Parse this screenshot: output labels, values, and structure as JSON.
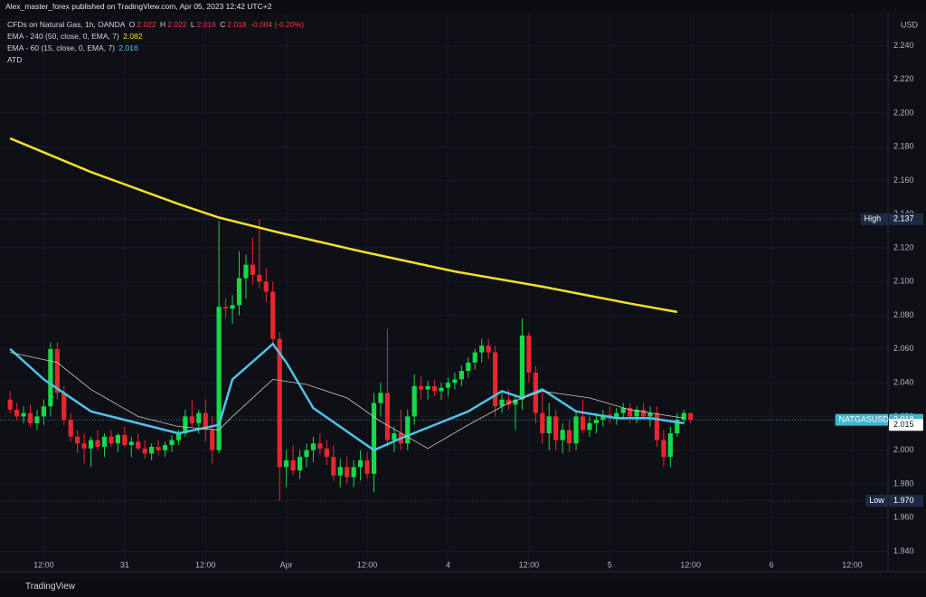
{
  "header": "Alex_master_forex published on TradingView.com, Apr 05, 2023 12:42 UTC+2",
  "footer": "TradingView",
  "chart_data": {
    "type": "candlestick",
    "title": "CFDs on Natural Gas, 1h, OANDA",
    "ohlc_labels": [
      "O",
      "H",
      "L",
      "C"
    ],
    "change": "-0.004 (-0.20%)",
    "currency": "USD",
    "indicator_label": "ATD",
    "up_color": "#16d94a",
    "down_color": "#e8262f",
    "x": [
      0,
      1,
      2,
      3,
      4,
      5,
      6,
      7,
      8,
      9,
      10,
      11,
      12,
      13,
      14,
      15,
      16,
      17,
      18,
      19,
      20,
      21,
      22,
      23,
      24,
      25,
      26,
      27,
      28,
      29,
      30,
      31,
      32,
      33,
      34,
      35,
      36,
      37,
      38,
      39,
      40,
      41,
      42,
      43,
      44,
      45,
      46,
      47,
      48,
      49,
      50,
      51,
      52,
      53,
      54,
      55,
      56,
      57,
      58,
      59,
      60,
      61,
      62,
      63,
      64,
      65,
      66,
      67,
      68,
      69,
      70,
      71,
      72,
      73,
      74,
      75,
      76,
      77,
      78,
      79,
      80,
      81,
      82,
      83,
      84,
      85,
      86,
      87,
      88,
      89,
      90,
      91,
      92,
      93,
      94,
      95,
      96,
      97,
      98,
      99,
      100,
      101
    ],
    "open": [
      2.03,
      2.024,
      2.02,
      2.022,
      2.016,
      2.02,
      2.026,
      2.06,
      2.034,
      2.018,
      2.008,
      2.004,
      2.001,
      2.006,
      2.002,
      2.008,
      2.004,
      2.009,
      2.003,
      2.005,
      2.001,
      1.998,
      2.002,
      2.0,
      2.003,
      2.006,
      2.01,
      2.02,
      2.016,
      2.022,
      2.012,
      2.0,
      2.085,
      2.084,
      2.086,
      2.102,
      2.11,
      2.104,
      2.1,
      2.094,
      2.066,
      1.99,
      1.994,
      1.988,
      1.996,
      2.0,
      2.004,
      2.001,
      1.996,
      1.985,
      1.99,
      1.984,
      1.99,
      1.994,
      1.986,
      2.028,
      2.034,
      2.006,
      2.01,
      2.004,
      2.02,
      2.038,
      2.036,
      2.038,
      2.035,
      2.037,
      2.04,
      2.042,
      2.047,
      2.052,
      2.058,
      2.062,
      2.058,
      2.026,
      2.03,
      2.027,
      2.03,
      2.068,
      2.046,
      2.022,
      2.01,
      2.02,
      2.006,
      2.012,
      2.004,
      2.02,
      2.012,
      2.016,
      2.018,
      2.021,
      2.019,
      2.022,
      2.025,
      2.02,
      2.024,
      2.02,
      2.022,
      2.006,
      1.996,
      2.01,
      2.018,
      2.022
    ],
    "high": [
      2.035,
      2.028,
      2.026,
      2.027,
      2.024,
      2.03,
      2.064,
      2.064,
      2.038,
      2.022,
      2.012,
      2.01,
      2.008,
      2.012,
      2.01,
      2.012,
      2.01,
      2.014,
      2.008,
      2.01,
      2.006,
      2.004,
      2.006,
      2.005,
      2.009,
      2.012,
      2.024,
      2.03,
      2.024,
      2.03,
      2.02,
      2.136,
      2.09,
      2.092,
      2.118,
      2.116,
      2.126,
      2.137,
      2.108,
      2.1,
      2.07,
      2.0,
      2.003,
      2.0,
      2.004,
      2.008,
      2.01,
      2.006,
      2.003,
      1.995,
      1.996,
      1.994,
      2.0,
      1.999,
      2.034,
      2.04,
      2.072,
      2.014,
      2.024,
      2.024,
      2.045,
      2.044,
      2.041,
      2.042,
      2.04,
      2.043,
      2.046,
      2.05,
      2.055,
      2.06,
      2.066,
      2.066,
      2.062,
      2.034,
      2.036,
      2.032,
      2.078,
      2.07,
      2.05,
      2.034,
      2.028,
      2.024,
      2.016,
      2.018,
      2.024,
      2.03,
      2.02,
      2.022,
      2.024,
      2.026,
      2.025,
      2.028,
      2.028,
      2.026,
      2.028,
      2.026,
      2.026,
      2.012,
      2.014,
      2.022,
      2.024,
      2.022
    ],
    "low": [
      2.022,
      2.018,
      2.016,
      2.014,
      2.012,
      2.015,
      2.02,
      2.03,
      2.015,
      2.005,
      1.998,
      1.992,
      1.99,
      2.0,
      1.996,
      2.002,
      1.999,
      2.002,
      1.996,
      2.0,
      1.995,
      1.994,
      1.997,
      1.996,
      1.999,
      2.003,
      2.008,
      2.014,
      2.01,
      2.005,
      1.992,
      1.998,
      2.078,
      2.075,
      2.08,
      2.09,
      2.098,
      2.096,
      2.088,
      2.062,
      1.97,
      1.978,
      1.985,
      1.983,
      1.99,
      1.993,
      1.997,
      1.991,
      1.982,
      1.978,
      1.98,
      1.978,
      1.982,
      1.983,
      1.975,
      2.02,
      2.002,
      1.999,
      2.0,
      2.0,
      2.015,
      2.03,
      2.03,
      2.032,
      2.03,
      2.032,
      2.036,
      2.038,
      2.043,
      2.048,
      2.052,
      2.054,
      2.02,
      2.022,
      2.024,
      2.012,
      2.024,
      2.04,
      2.016,
      2.004,
      2.0,
      2.0,
      1.998,
      1.999,
      2.0,
      2.01,
      2.008,
      2.01,
      2.014,
      2.016,
      2.015,
      2.018,
      2.016,
      2.016,
      2.018,
      2.014,
      2.002,
      1.99,
      1.99,
      2.008,
      2.016,
      2.016
    ],
    "close": [
      2.024,
      2.02,
      2.022,
      2.016,
      2.02,
      2.026,
      2.06,
      2.034,
      2.018,
      2.008,
      2.004,
      2.001,
      2.006,
      2.002,
      2.008,
      2.004,
      2.009,
      2.003,
      2.005,
      2.001,
      1.998,
      2.002,
      2.0,
      2.003,
      2.006,
      2.01,
      2.02,
      2.016,
      2.022,
      2.012,
      2.0,
      2.085,
      2.084,
      2.086,
      2.102,
      2.11,
      2.104,
      2.1,
      2.094,
      2.066,
      1.99,
      1.994,
      1.988,
      1.996,
      2.0,
      2.004,
      2.001,
      1.996,
      1.985,
      1.99,
      1.984,
      1.99,
      1.994,
      1.986,
      2.028,
      2.034,
      2.006,
      2.01,
      2.004,
      2.02,
      2.038,
      2.036,
      2.038,
      2.035,
      2.037,
      2.04,
      2.042,
      2.047,
      2.052,
      2.058,
      2.062,
      2.058,
      2.026,
      2.03,
      2.027,
      2.03,
      2.068,
      2.046,
      2.022,
      2.01,
      2.02,
      2.006,
      2.012,
      2.004,
      2.02,
      2.012,
      2.016,
      2.018,
      2.021,
      2.019,
      2.022,
      2.025,
      2.02,
      2.024,
      2.02,
      2.022,
      2.006,
      1.996,
      2.01,
      2.018,
      2.022,
      2.018
    ],
    "overlays": [
      {
        "name": "EMA - 240 (50, close, 0, EMA, 7)",
        "legend_value": 2.082,
        "color": "#f5e02a",
        "width": 2.5,
        "x": [
          0,
          12,
          25,
          31,
          40,
          52,
          66,
          79,
          92,
          99
        ],
        "values": [
          2.185,
          2.165,
          2.146,
          2.138,
          2.129,
          2.118,
          2.106,
          2.097,
          2.087,
          2.082
        ]
      },
      {
        "name": "EMA - 60 (15, close, 0, EMA, 7)",
        "legend_value": 2.016,
        "color": "#4fc3e8",
        "width": 2.5,
        "x": [
          0,
          5,
          12,
          19,
          25,
          31,
          33,
          39,
          41,
          45,
          54,
          58,
          63,
          68,
          73,
          76,
          79,
          84,
          90,
          95,
          100
        ],
        "values": [
          2.06,
          2.042,
          2.023,
          2.016,
          2.01,
          2.015,
          2.042,
          2.063,
          2.052,
          2.025,
          2.0,
          2.007,
          2.015,
          2.023,
          2.035,
          2.031,
          2.036,
          2.023,
          2.019,
          2.019,
          2.016
        ]
      },
      {
        "color": "#c8c8c8",
        "width": 0.8,
        "x": [
          0,
          7,
          12,
          19,
          25,
          31,
          33,
          39,
          44,
          50,
          55,
          62,
          68,
          74,
          79,
          86,
          92,
          100
        ],
        "values": [
          2.058,
          2.052,
          2.036,
          2.02,
          2.014,
          2.012,
          2.02,
          2.042,
          2.039,
          2.031,
          2.017,
          2.001,
          2.015,
          2.028,
          2.035,
          2.031,
          2.024,
          2.019
        ]
      }
    ],
    "xlim": [
      -1.5,
      130.3
    ],
    "ylim": [
      1.929,
      2.259
    ],
    "xticks": [
      {
        "value": 5,
        "label": "12:00"
      },
      {
        "value": 17,
        "label": "31"
      },
      {
        "value": 29,
        "label": "12:00"
      },
      {
        "value": 41,
        "label": "Apr"
      },
      {
        "value": 53,
        "label": "12:00"
      },
      {
        "value": 65,
        "label": "4"
      },
      {
        "value": 77,
        "label": "12:00"
      },
      {
        "value": 89,
        "label": "5"
      },
      {
        "value": 101,
        "label": "12:00"
      },
      {
        "value": 113,
        "label": "6"
      },
      {
        "value": 125,
        "label": "12:00"
      }
    ],
    "yticks": [
      {
        "value": 1.94,
        "label": "1.940"
      },
      {
        "value": 1.96,
        "label": "1.960"
      },
      {
        "value": 1.98,
        "label": "1.980"
      },
      {
        "value": 2,
        "label": "2.000"
      },
      {
        "value": 2.02,
        "label": "2.020"
      },
      {
        "value": 2.04,
        "label": "2.040"
      },
      {
        "value": 2.06,
        "label": "2.060"
      },
      {
        "value": 2.08,
        "label": "2.080"
      },
      {
        "value": 2.1,
        "label": "2.100"
      },
      {
        "value": 2.12,
        "label": "2.120"
      },
      {
        "value": 2.14,
        "label": "2.140"
      },
      {
        "value": 2.16,
        "label": "2.160"
      },
      {
        "value": 2.18,
        "label": "2.180"
      },
      {
        "value": 2.2,
        "label": "2.200"
      },
      {
        "value": 2.22,
        "label": "2.220"
      },
      {
        "value": 2.24,
        "label": "2.240"
      }
    ],
    "grid": true,
    "markers": [
      {
        "label": "High",
        "value": 2.137,
        "color": "#1e2a44"
      },
      {
        "label": "Low",
        "value": 1.97,
        "value_label": "1.970",
        "color": "#1e2a44"
      },
      {
        "label": "NATGASUSD",
        "value": 2.018,
        "color": "#3fb6cf"
      },
      {
        "value": 2.015,
        "color": "#ffffff"
      }
    ]
  }
}
